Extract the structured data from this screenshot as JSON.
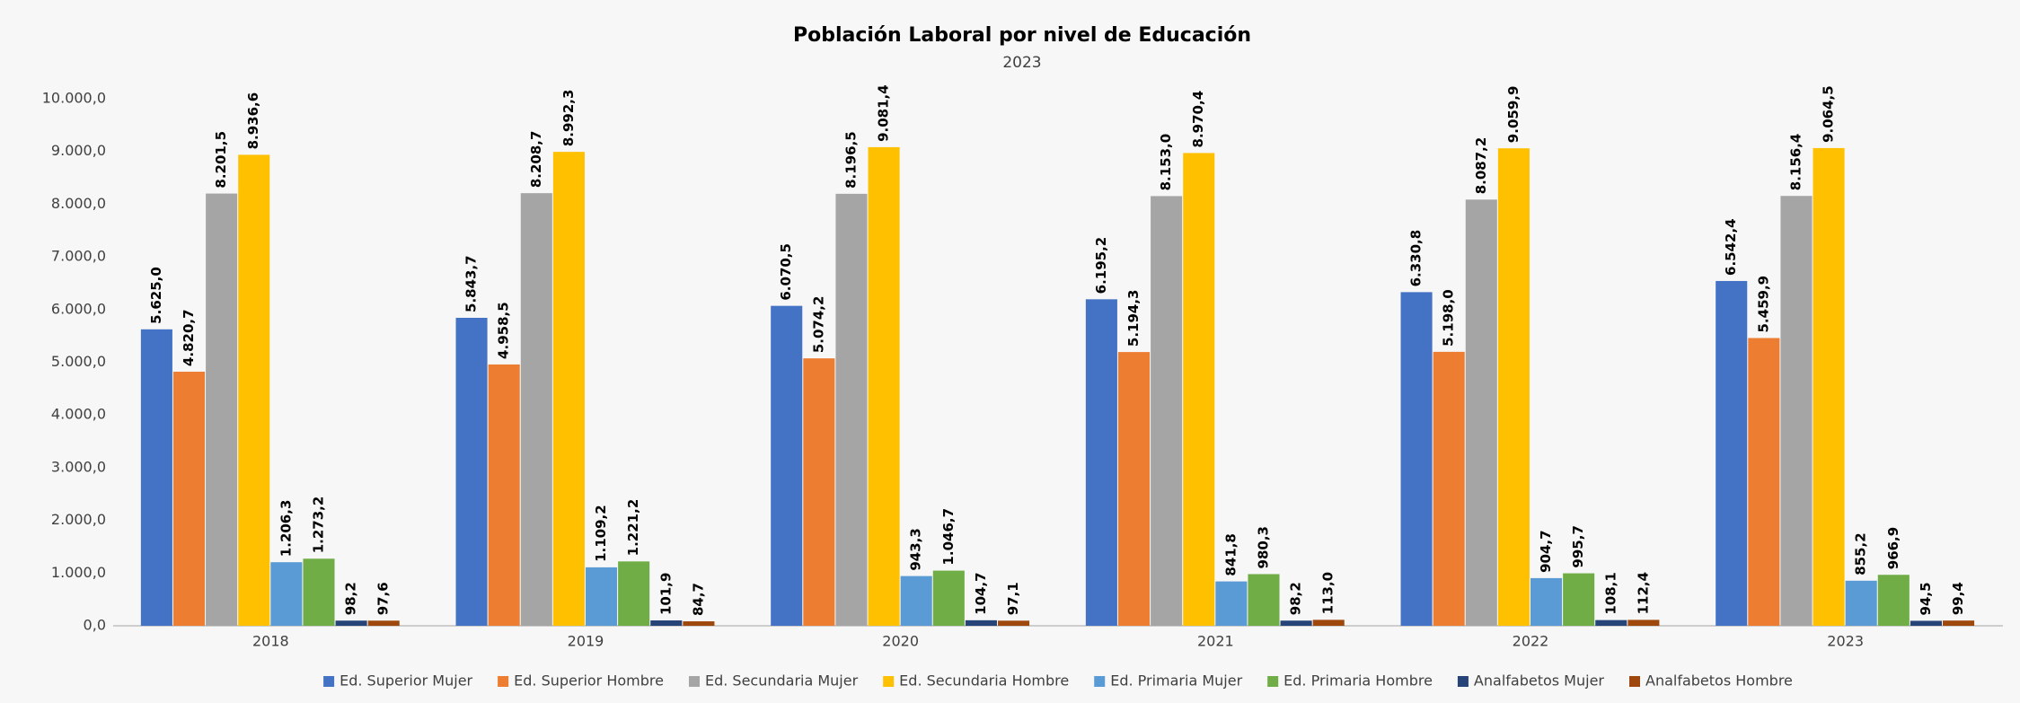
{
  "chart_data": {
    "type": "bar",
    "title": "Población Laboral por nivel de Educación",
    "subtitle": "2023",
    "categories": [
      "2018",
      "2019",
      "2020",
      "2021",
      "2022",
      "2023"
    ],
    "ylim": [
      0,
      10000
    ],
    "yticks": [
      {
        "value": 0,
        "label": "0,0"
      },
      {
        "value": 1000,
        "label": "1.000,0"
      },
      {
        "value": 2000,
        "label": "2.000,0"
      },
      {
        "value": 3000,
        "label": "3.000,0"
      },
      {
        "value": 4000,
        "label": "4.000,0"
      },
      {
        "value": 5000,
        "label": "5.000,0"
      },
      {
        "value": 6000,
        "label": "6.000,0"
      },
      {
        "value": 7000,
        "label": "7.000,0"
      },
      {
        "value": 8000,
        "label": "8.000,0"
      },
      {
        "value": 9000,
        "label": "9.000,0"
      },
      {
        "value": 10000,
        "label": "10.000,0"
      }
    ],
    "grid": false,
    "legend": "bottom",
    "series": [
      {
        "name": "Ed. Superior Mujer",
        "color": "#4472c4",
        "values": [
          5625.0,
          5843.7,
          6070.5,
          6195.2,
          6330.8,
          6542.4
        ],
        "value_labels": [
          "5.625,0",
          "5.843,7",
          "6.070,5",
          "6.195,2",
          "6.330,8",
          "6.542,4"
        ]
      },
      {
        "name": "Ed. Superior Hombre",
        "color": "#ed7d31",
        "values": [
          4820.7,
          4958.5,
          5074.2,
          5194.3,
          5198.0,
          5459.9
        ],
        "value_labels": [
          "4.820,7",
          "4.958,5",
          "5.074,2",
          "5.194,3",
          "5.198,0",
          "5.459,9"
        ]
      },
      {
        "name": "Ed. Secundaria Mujer",
        "color": "#a5a5a5",
        "values": [
          8201.5,
          8208.7,
          8196.5,
          8153.0,
          8087.2,
          8156.4
        ],
        "value_labels": [
          "8.201,5",
          "8.208,7",
          "8.196,5",
          "8.153,0",
          "8.087,2",
          "8.156,4"
        ]
      },
      {
        "name": "Ed. Secundaria Hombre",
        "color": "#ffc000",
        "values": [
          8936.6,
          8992.3,
          9081.4,
          8970.4,
          9059.9,
          9064.5
        ],
        "value_labels": [
          "8.936,6",
          "8.992,3",
          "9.081,4",
          "8.970,4",
          "9.059,9",
          "9.064,5"
        ]
      },
      {
        "name": "Ed. Primaria Mujer",
        "color": "#5b9bd5",
        "values": [
          1206.3,
          1109.2,
          943.3,
          841.8,
          904.7,
          855.2
        ],
        "value_labels": [
          "1.206,3",
          "1.109,2",
          "943,3",
          "841,8",
          "904,7",
          "855,2"
        ]
      },
      {
        "name": "Ed. Primaria Hombre",
        "color": "#70ad47",
        "values": [
          1273.2,
          1221.2,
          1046.7,
          980.3,
          995.7,
          966.9
        ],
        "value_labels": [
          "1.273,2",
          "1.221,2",
          "1.046,7",
          "980,3",
          "995,7",
          "966,9"
        ]
      },
      {
        "name": "Analfabetos Mujer",
        "color": "#264478",
        "values": [
          98.2,
          101.9,
          104.7,
          98.2,
          108.1,
          94.5
        ],
        "value_labels": [
          "98,2",
          "101,9",
          "104,7",
          "98,2",
          "108,1",
          "94,5"
        ]
      },
      {
        "name": "Analfabetos Hombre",
        "color": "#9e480e",
        "values": [
          97.6,
          84.7,
          97.1,
          113.0,
          112.4,
          99.4
        ],
        "value_labels": [
          "97,6",
          "84,7",
          "97,1",
          "113,0",
          "112,4",
          "99,4"
        ]
      }
    ]
  }
}
